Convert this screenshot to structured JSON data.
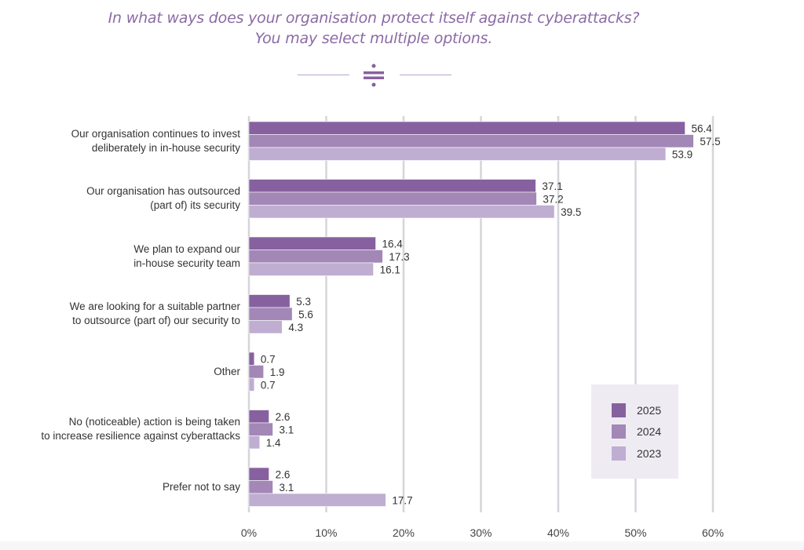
{
  "header": {
    "title_line1": "In what ways does your organisation protect itself against cyberattacks?",
    "title_line2": "You may select multiple options.",
    "divider_icon": "divide-icon"
  },
  "colors": {
    "2025": "#87619f",
    "2024": "#a287b7",
    "2023": "#bfadd2",
    "title": "#8c6aa6",
    "grid": "#d4d6da",
    "legend_bg": "#efebf3"
  },
  "chart_data": {
    "type": "bar",
    "orientation": "horizontal",
    "title": "In what ways does your organisation protect itself against cyberattacks? You may select multiple options.",
    "xlabel": "",
    "ylabel": "",
    "xlim": [
      0,
      60
    ],
    "x_ticks": [
      "0%",
      "10%",
      "20%",
      "30%",
      "40%",
      "50%",
      "60%"
    ],
    "x_tick_values": [
      0,
      10,
      20,
      30,
      40,
      50,
      60
    ],
    "grid": "vertical",
    "legend_position": "bottom-right",
    "categories": [
      [
        "Our organisation continues to invest",
        "deliberately in in-house security"
      ],
      [
        "Our organisation has outsourced",
        "(part of) its security"
      ],
      [
        "We plan to expand our",
        "in-house security team"
      ],
      [
        "We are looking for a suitable partner",
        "to outsource (part of) our security to"
      ],
      [
        "Other"
      ],
      [
        "No (noticeable) action is being taken",
        "to increase resilience against cyberattacks"
      ],
      [
        "Prefer not to say"
      ]
    ],
    "series": [
      {
        "name": "2025",
        "values": [
          56.4,
          37.1,
          16.4,
          5.3,
          0.7,
          2.6,
          2.6
        ]
      },
      {
        "name": "2024",
        "values": [
          57.5,
          37.2,
          17.3,
          5.6,
          1.9,
          3.1,
          3.1
        ]
      },
      {
        "name": "2023",
        "values": [
          53.9,
          39.5,
          16.1,
          4.3,
          0.7,
          1.4,
          17.7
        ]
      }
    ]
  },
  "legend": {
    "items": [
      {
        "label": "2025"
      },
      {
        "label": "2024"
      },
      {
        "label": "2023"
      }
    ]
  }
}
